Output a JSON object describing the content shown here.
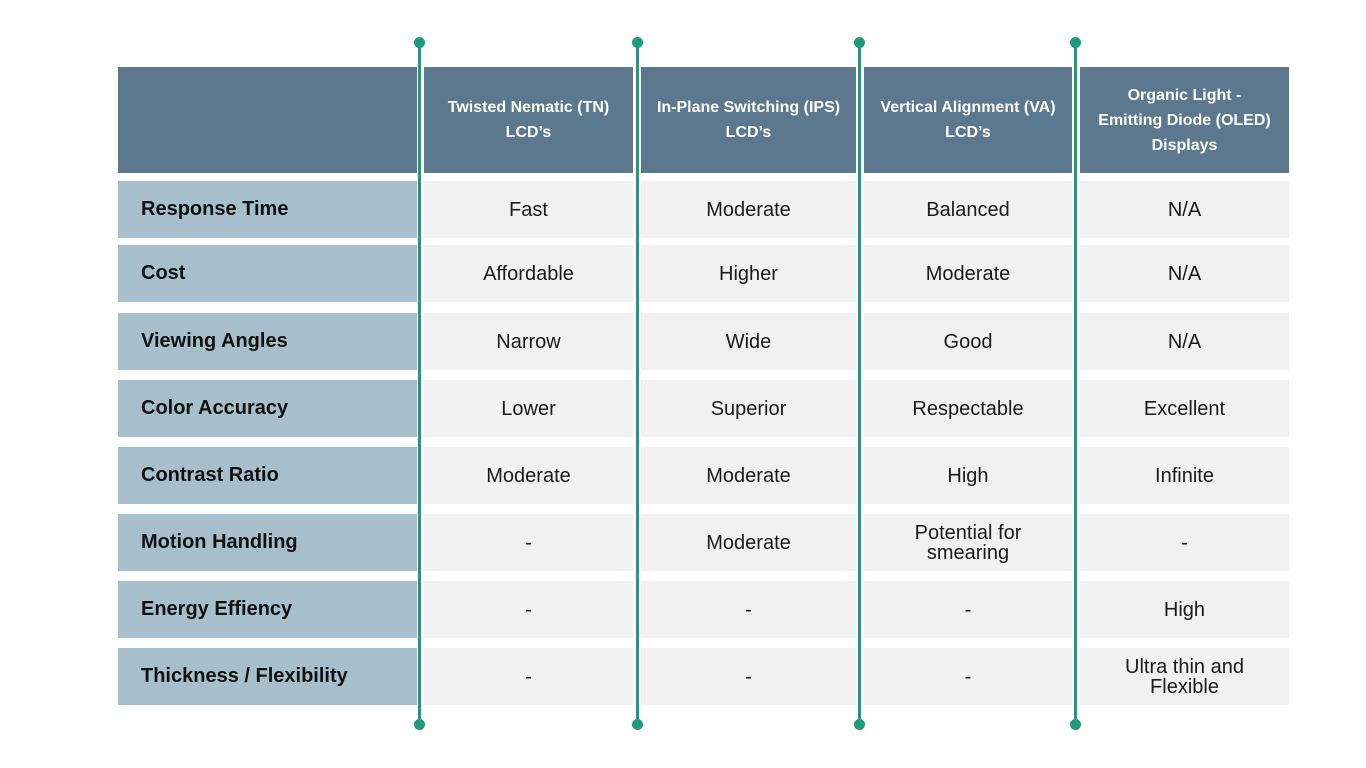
{
  "colors": {
    "header_bg": "#5b788f",
    "label_bg": "#a6bfcb",
    "cell_bg": "#f1f1f1",
    "accent_line": "#1e9a7c"
  },
  "columns": [
    "Twisted Nematic (TN)\nLCD’s",
    "In-Plane Switching (IPS)\nLCD’s",
    "Vertical Alignment (VA)\nLCD’s",
    "Organic Light -\nEmitting Diode (OLED)\nDisplays"
  ],
  "rows": [
    {
      "label": "Response Time",
      "values": [
        "Fast",
        "Moderate",
        "Balanced",
        "N/A"
      ]
    },
    {
      "label": "Cost",
      "values": [
        "Affordable",
        "Higher",
        "Moderate",
        "N/A"
      ]
    },
    {
      "label": "Viewing Angles",
      "values": [
        "Narrow",
        "Wide",
        "Good",
        "N/A"
      ]
    },
    {
      "label": "Color Accuracy",
      "values": [
        "Lower",
        "Superior",
        "Respectable",
        "Excellent"
      ]
    },
    {
      "label": "Contrast Ratio",
      "values": [
        "Moderate",
        "Moderate",
        "High",
        "Infinite"
      ]
    },
    {
      "label": "Motion Handling",
      "values": [
        "-",
        "Moderate",
        "Potential for\nsmearing",
        "-"
      ]
    },
    {
      "label": "Energy Effiency",
      "values": [
        "-",
        "-",
        "-",
        "High"
      ]
    },
    {
      "label": "Thickness / Flexibility",
      "values": [
        "-",
        "-",
        "-",
        "Ultra thin and\nFlexible"
      ]
    }
  ]
}
